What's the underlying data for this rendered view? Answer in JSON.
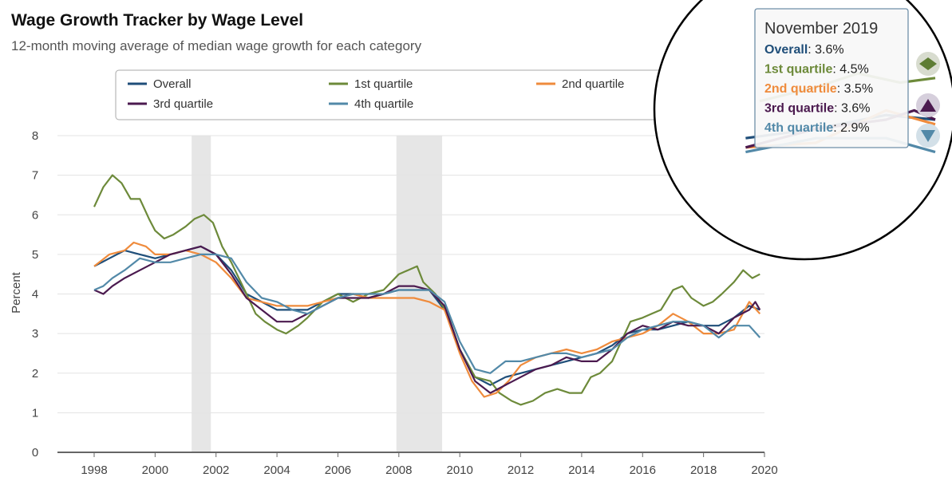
{
  "page": {
    "title": "Wage Growth Tracker by Wage Level",
    "subtitle": "12-month moving average of median wage growth for each category"
  },
  "tooltip": {
    "date": "November 2019",
    "rows": [
      {
        "label": "Overall",
        "value": ": 3.6%",
        "color": "#1f4e79"
      },
      {
        "label": "1st quartile",
        "value": ": 4.5%",
        "color": "#6d8a3a"
      },
      {
        "label": "2nd quartile",
        "value": ": 3.5%",
        "color": "#ef8b3c"
      },
      {
        "label": "3rd quartile",
        "value": ": 3.6%",
        "color": "#4b1a4f"
      },
      {
        "label": "4th quartile",
        "value": ": 2.9%",
        "color": "#5289a8"
      }
    ]
  },
  "chart_data": {
    "type": "line",
    "title": "Wage Growth Tracker by Wage Level",
    "subtitle": "12-month moving average of median wage growth for each category",
    "ylabel": "Percent",
    "xlabel": "",
    "xlim": [
      1997.7,
      2020
    ],
    "ylim": [
      0,
      8
    ],
    "x_ticks": [
      1998,
      2000,
      2002,
      2004,
      2006,
      2008,
      2010,
      2012,
      2014,
      2016,
      2018,
      2020
    ],
    "y_ticks": [
      0,
      1,
      2,
      3,
      4,
      5,
      6,
      7,
      8
    ],
    "grid": true,
    "legend_position": "top",
    "recessions": [
      [
        2001.2,
        2001.83
      ],
      [
        2007.92,
        2009.42
      ]
    ],
    "series": [
      {
        "name": "Overall",
        "color": "#1f4e79",
        "points": [
          [
            1998,
            4.7
          ],
          [
            1998.5,
            4.9
          ],
          [
            1999,
            5.1
          ],
          [
            1999.5,
            5.0
          ],
          [
            2000,
            4.9
          ],
          [
            2000.5,
            5.0
          ],
          [
            2001,
            5.1
          ],
          [
            2001.5,
            5.2
          ],
          [
            2002,
            5.0
          ],
          [
            2002.5,
            4.6
          ],
          [
            2003,
            4.0
          ],
          [
            2003.5,
            3.8
          ],
          [
            2004,
            3.6
          ],
          [
            2004.5,
            3.6
          ],
          [
            2005,
            3.6
          ],
          [
            2005.5,
            3.8
          ],
          [
            2006,
            4.0
          ],
          [
            2006.5,
            4.0
          ],
          [
            2007,
            3.9
          ],
          [
            2007.5,
            4.0
          ],
          [
            2008,
            4.1
          ],
          [
            2008.5,
            4.1
          ],
          [
            2009,
            4.1
          ],
          [
            2009.5,
            3.6
          ],
          [
            2010,
            2.6
          ],
          [
            2010.5,
            1.9
          ],
          [
            2011,
            1.7
          ],
          [
            2011.5,
            1.9
          ],
          [
            2012,
            2.0
          ],
          [
            2012.5,
            2.1
          ],
          [
            2013,
            2.2
          ],
          [
            2013.5,
            2.3
          ],
          [
            2014,
            2.4
          ],
          [
            2014.5,
            2.5
          ],
          [
            2015,
            2.7
          ],
          [
            2015.5,
            3.0
          ],
          [
            2016,
            3.1
          ],
          [
            2016.5,
            3.1
          ],
          [
            2017,
            3.2
          ],
          [
            2017.5,
            3.3
          ],
          [
            2018,
            3.2
          ],
          [
            2018.5,
            3.2
          ],
          [
            2019,
            3.4
          ],
          [
            2019.5,
            3.7
          ],
          [
            2019.85,
            3.6
          ]
        ]
      },
      {
        "name": "1st quartile",
        "color": "#6d8a3a",
        "points": [
          [
            1998,
            6.2
          ],
          [
            1998.3,
            6.7
          ],
          [
            1998.6,
            7.0
          ],
          [
            1998.9,
            6.8
          ],
          [
            1999.2,
            6.4
          ],
          [
            1999.5,
            6.4
          ],
          [
            1999.8,
            5.9
          ],
          [
            2000,
            5.6
          ],
          [
            2000.3,
            5.4
          ],
          [
            2000.6,
            5.5
          ],
          [
            2001,
            5.7
          ],
          [
            2001.3,
            5.9
          ],
          [
            2001.6,
            6.0
          ],
          [
            2001.9,
            5.8
          ],
          [
            2002.2,
            5.2
          ],
          [
            2002.5,
            4.8
          ],
          [
            2003,
            4.0
          ],
          [
            2003.3,
            3.5
          ],
          [
            2003.6,
            3.3
          ],
          [
            2004,
            3.1
          ],
          [
            2004.3,
            3.0
          ],
          [
            2004.7,
            3.2
          ],
          [
            2005,
            3.4
          ],
          [
            2005.5,
            3.8
          ],
          [
            2006,
            4.0
          ],
          [
            2006.5,
            3.8
          ],
          [
            2007,
            4.0
          ],
          [
            2007.5,
            4.1
          ],
          [
            2008,
            4.5
          ],
          [
            2008.3,
            4.6
          ],
          [
            2008.6,
            4.7
          ],
          [
            2008.8,
            4.3
          ],
          [
            2009.2,
            4.0
          ],
          [
            2009.6,
            3.5
          ],
          [
            2010,
            2.6
          ],
          [
            2010.5,
            1.9
          ],
          [
            2011,
            1.8
          ],
          [
            2011.3,
            1.5
          ],
          [
            2011.7,
            1.3
          ],
          [
            2012,
            1.2
          ],
          [
            2012.4,
            1.3
          ],
          [
            2012.8,
            1.5
          ],
          [
            2013.2,
            1.6
          ],
          [
            2013.6,
            1.5
          ],
          [
            2014,
            1.5
          ],
          [
            2014.3,
            1.9
          ],
          [
            2014.6,
            2.0
          ],
          [
            2015,
            2.3
          ],
          [
            2015.3,
            2.8
          ],
          [
            2015.6,
            3.3
          ],
          [
            2016,
            3.4
          ],
          [
            2016.3,
            3.5
          ],
          [
            2016.6,
            3.6
          ],
          [
            2017,
            4.1
          ],
          [
            2017.3,
            4.2
          ],
          [
            2017.6,
            3.9
          ],
          [
            2018,
            3.7
          ],
          [
            2018.3,
            3.8
          ],
          [
            2018.6,
            4.0
          ],
          [
            2019,
            4.3
          ],
          [
            2019.3,
            4.6
          ],
          [
            2019.6,
            4.4
          ],
          [
            2019.85,
            4.5
          ]
        ]
      },
      {
        "name": "2nd quartile",
        "color": "#ef8b3c",
        "points": [
          [
            1998,
            4.7
          ],
          [
            1998.5,
            5.0
          ],
          [
            1999,
            5.1
          ],
          [
            1999.3,
            5.3
          ],
          [
            1999.7,
            5.2
          ],
          [
            2000,
            5.0
          ],
          [
            2000.5,
            5.0
          ],
          [
            2001,
            5.1
          ],
          [
            2001.5,
            5.0
          ],
          [
            2002,
            4.8
          ],
          [
            2002.5,
            4.4
          ],
          [
            2003,
            3.9
          ],
          [
            2003.5,
            3.8
          ],
          [
            2004,
            3.7
          ],
          [
            2004.5,
            3.7
          ],
          [
            2005,
            3.7
          ],
          [
            2005.5,
            3.8
          ],
          [
            2006,
            3.9
          ],
          [
            2006.5,
            4.0
          ],
          [
            2007,
            3.9
          ],
          [
            2007.5,
            3.9
          ],
          [
            2008,
            3.9
          ],
          [
            2008.5,
            3.9
          ],
          [
            2009,
            3.8
          ],
          [
            2009.5,
            3.6
          ],
          [
            2010,
            2.5
          ],
          [
            2010.4,
            1.8
          ],
          [
            2010.8,
            1.4
          ],
          [
            2011.2,
            1.5
          ],
          [
            2011.6,
            1.8
          ],
          [
            2012,
            2.2
          ],
          [
            2012.5,
            2.4
          ],
          [
            2013,
            2.5
          ],
          [
            2013.5,
            2.6
          ],
          [
            2014,
            2.5
          ],
          [
            2014.5,
            2.6
          ],
          [
            2015,
            2.8
          ],
          [
            2015.5,
            2.9
          ],
          [
            2016,
            3.0
          ],
          [
            2016.5,
            3.2
          ],
          [
            2017,
            3.5
          ],
          [
            2017.5,
            3.3
          ],
          [
            2018,
            3.0
          ],
          [
            2018.5,
            3.0
          ],
          [
            2019,
            3.1
          ],
          [
            2019.5,
            3.8
          ],
          [
            2019.85,
            3.5
          ]
        ]
      },
      {
        "name": "3rd quartile",
        "color": "#4b1a4f",
        "points": [
          [
            1998,
            4.1
          ],
          [
            1998.3,
            4.0
          ],
          [
            1998.6,
            4.2
          ],
          [
            1999,
            4.4
          ],
          [
            1999.5,
            4.6
          ],
          [
            2000,
            4.8
          ],
          [
            2000.5,
            5.0
          ],
          [
            2001,
            5.1
          ],
          [
            2001.5,
            5.2
          ],
          [
            2002,
            5.0
          ],
          [
            2002.5,
            4.5
          ],
          [
            2003,
            3.9
          ],
          [
            2003.5,
            3.6
          ],
          [
            2004,
            3.3
          ],
          [
            2004.5,
            3.3
          ],
          [
            2005,
            3.5
          ],
          [
            2005.5,
            3.7
          ],
          [
            2006,
            3.9
          ],
          [
            2006.5,
            3.9
          ],
          [
            2007,
            3.9
          ],
          [
            2007.5,
            4.0
          ],
          [
            2008,
            4.2
          ],
          [
            2008.5,
            4.2
          ],
          [
            2009,
            4.1
          ],
          [
            2009.5,
            3.7
          ],
          [
            2010,
            2.6
          ],
          [
            2010.5,
            1.8
          ],
          [
            2011,
            1.5
          ],
          [
            2011.5,
            1.7
          ],
          [
            2012,
            1.9
          ],
          [
            2012.5,
            2.1
          ],
          [
            2013,
            2.2
          ],
          [
            2013.5,
            2.4
          ],
          [
            2014,
            2.3
          ],
          [
            2014.5,
            2.3
          ],
          [
            2015,
            2.6
          ],
          [
            2015.5,
            3.0
          ],
          [
            2016,
            3.2
          ],
          [
            2016.5,
            3.1
          ],
          [
            2017,
            3.3
          ],
          [
            2017.5,
            3.2
          ],
          [
            2018,
            3.2
          ],
          [
            2018.5,
            3.0
          ],
          [
            2019,
            3.4
          ],
          [
            2019.5,
            3.6
          ],
          [
            2019.7,
            3.8
          ],
          [
            2019.85,
            3.6
          ]
        ]
      },
      {
        "name": "4th quartile",
        "color": "#5289a8",
        "points": [
          [
            1998,
            4.1
          ],
          [
            1998.3,
            4.2
          ],
          [
            1998.6,
            4.4
          ],
          [
            1999,
            4.6
          ],
          [
            1999.5,
            4.9
          ],
          [
            2000,
            4.8
          ],
          [
            2000.5,
            4.8
          ],
          [
            2001,
            4.9
          ],
          [
            2001.5,
            5.0
          ],
          [
            2002,
            5.0
          ],
          [
            2002.5,
            4.9
          ],
          [
            2003,
            4.3
          ],
          [
            2003.5,
            3.9
          ],
          [
            2004,
            3.8
          ],
          [
            2004.5,
            3.6
          ],
          [
            2005,
            3.5
          ],
          [
            2005.5,
            3.7
          ],
          [
            2006,
            3.9
          ],
          [
            2006.5,
            4.0
          ],
          [
            2007,
            4.0
          ],
          [
            2007.5,
            4.0
          ],
          [
            2008,
            4.1
          ],
          [
            2008.5,
            4.1
          ],
          [
            2009,
            4.1
          ],
          [
            2009.5,
            3.8
          ],
          [
            2010,
            2.8
          ],
          [
            2010.5,
            2.1
          ],
          [
            2011,
            2.0
          ],
          [
            2011.5,
            2.3
          ],
          [
            2012,
            2.3
          ],
          [
            2012.5,
            2.4
          ],
          [
            2013,
            2.5
          ],
          [
            2013.5,
            2.5
          ],
          [
            2014,
            2.4
          ],
          [
            2014.5,
            2.5
          ],
          [
            2015,
            2.6
          ],
          [
            2015.5,
            2.9
          ],
          [
            2016,
            3.1
          ],
          [
            2016.5,
            3.2
          ],
          [
            2017,
            3.3
          ],
          [
            2017.5,
            3.3
          ],
          [
            2018,
            3.2
          ],
          [
            2018.5,
            2.9
          ],
          [
            2019,
            3.2
          ],
          [
            2019.5,
            3.2
          ],
          [
            2019.85,
            2.9
          ]
        ]
      }
    ]
  }
}
